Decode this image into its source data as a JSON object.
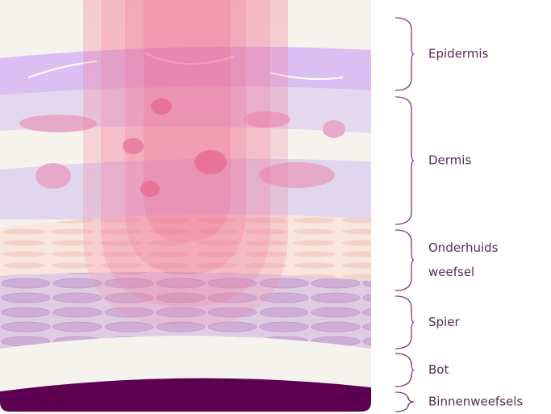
{
  "layers": [
    {
      "lines": [
        "Epidermis"
      ]
    },
    {
      "lines": [
        "Dermis"
      ]
    },
    {
      "lines": [
        "Onderhuids",
        "weefsel"
      ]
    },
    {
      "lines": [
        "Spier"
      ]
    },
    {
      "lines": [
        "Bot"
      ]
    },
    {
      "lines": [
        "Binnenweefsels"
      ]
    }
  ]
}
